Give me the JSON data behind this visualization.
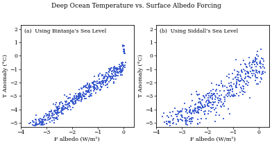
{
  "title": "Deep Ocean Temperature vs. Surface Albedo Forcing",
  "subplot_a_label": "(a)  Using Bintanja’s Sea Level",
  "subplot_b_label": "(b)  Using Siddall’s Sea Level",
  "xlabel": "F albedo (W/m²)",
  "ylabel": "T Anomaly (°C)",
  "xlim": [
    -4.0,
    0.4
  ],
  "ylim": [
    -5.3,
    2.3
  ],
  "xticks": [
    -4,
    -3,
    -2,
    -1,
    0
  ],
  "yticks": [
    -5,
    -4,
    -3,
    -2,
    -1,
    0,
    1,
    2
  ],
  "point_color": "#3355cc",
  "point_size_a": 2.0,
  "point_size_b": 2.5,
  "point_alpha": 0.9,
  "background_color": "#ffffff",
  "seed_a": 42,
  "seed_b": 7,
  "n_points_a": 550,
  "n_points_b": 480,
  "title_fontsize": 6.5,
  "label_fontsize": 5.8,
  "tick_fontsize": 5.5,
  "annot_fontsize": 5.5
}
